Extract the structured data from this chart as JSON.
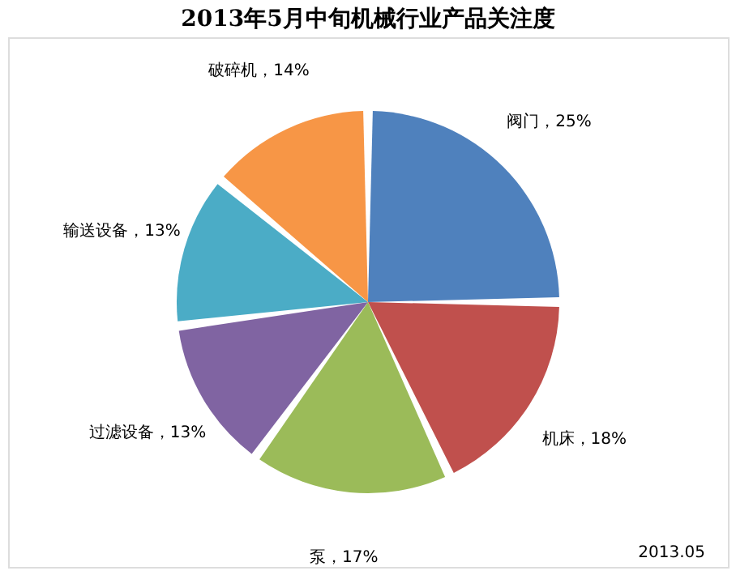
{
  "chart_data": {
    "type": "pie",
    "title": "2013年5月中旬机械行业产品关注度",
    "categories": [
      "阀门",
      "机床",
      "泵",
      "过滤设备",
      "输送设备",
      "破碎机"
    ],
    "values": [
      25,
      18,
      17,
      13,
      13,
      14
    ],
    "colors": [
      "#4f81bd",
      "#c0504d",
      "#9bbb59",
      "#8064a2",
      "#4bacc6",
      "#f79646"
    ],
    "value_labels": [
      "25%",
      "18%",
      "17%",
      "13%",
      "13%",
      "14%"
    ],
    "legend": false,
    "annotations": [
      "2013.05"
    ]
  }
}
